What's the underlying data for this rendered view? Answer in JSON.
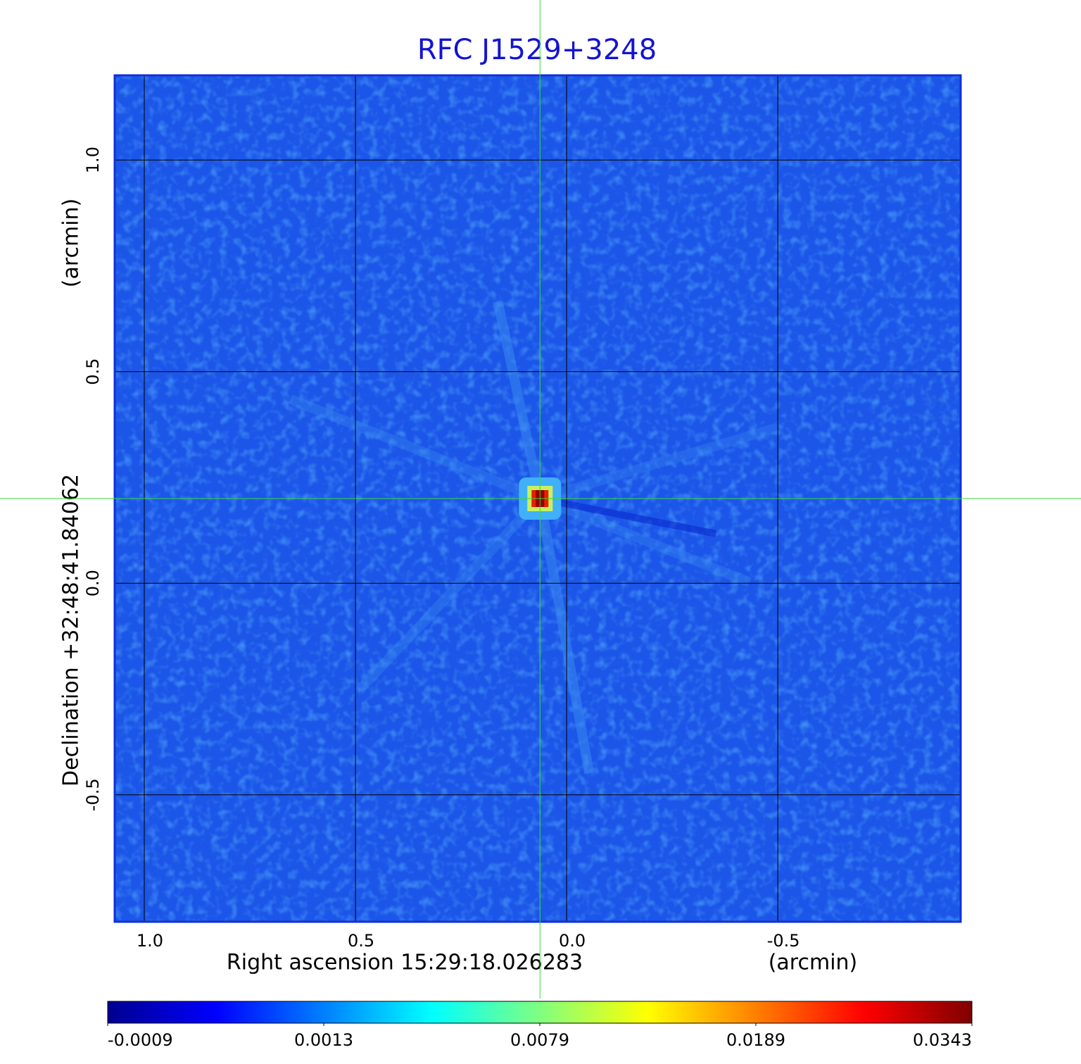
{
  "chart_data": {
    "type": "image",
    "title": "RFC J1529+3248",
    "x_label": "Right ascension  15:29:18.026283",
    "x_unit": "(arcmin)",
    "y_label": "Declination  +32:48:41.84062",
    "y_unit": "(arcmin)",
    "xlim": [
      1.07,
      -0.933
    ],
    "ylim": [
      -0.8,
      1.2
    ],
    "xticks": [
      {
        "value": 1,
        "label": "1.0"
      },
      0.5,
      {
        "value": 0,
        "label": "0.0"
      },
      -0.5
    ],
    "yticks": [
      {
        "value": 1,
        "label": "1.0"
      },
      0.5,
      {
        "value": 0,
        "label": "0.0"
      },
      -0.5
    ],
    "grid": true,
    "source": {
      "x": 0.063,
      "y": 0.2
    },
    "colorbar": {
      "colormap": "jet",
      "ticks": [
        -0.0009,
        0.0013,
        0.0079,
        0.0189,
        0.0343
      ]
    }
  }
}
